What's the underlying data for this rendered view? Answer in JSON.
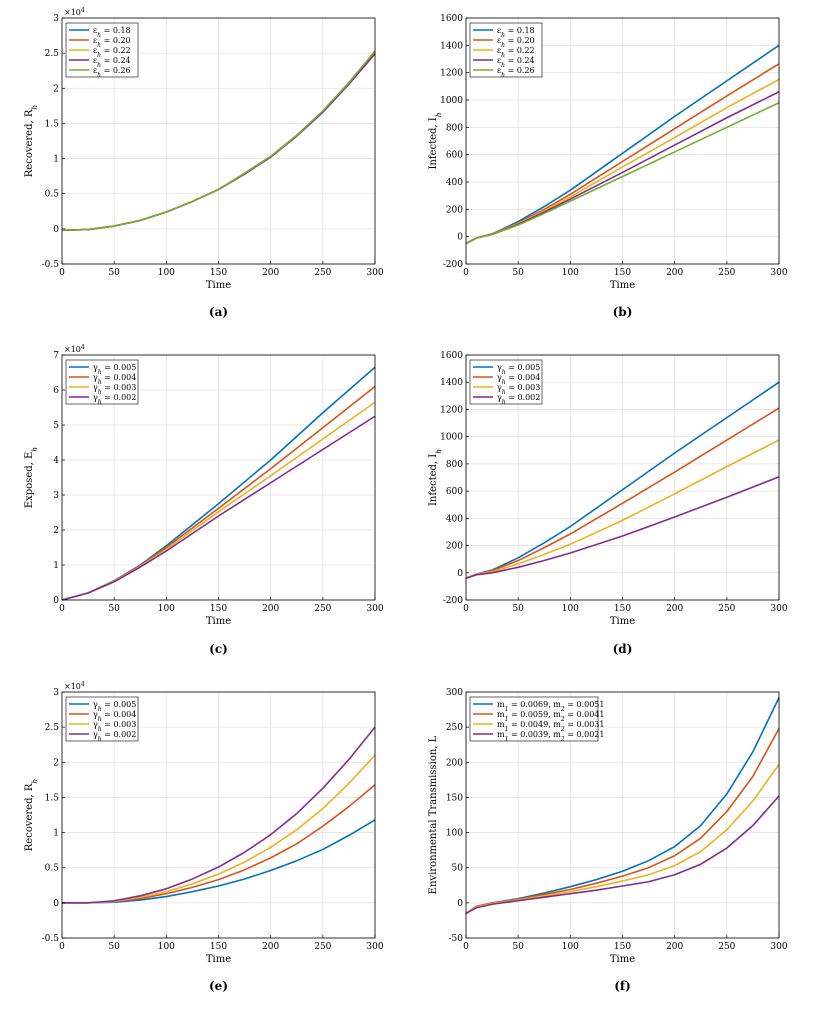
{
  "chart_data": [
    {
      "panel": "(a)",
      "type": "line",
      "xlabel": "Time",
      "ylabel": "Recovered, R_h",
      "xlim": [
        0,
        300
      ],
      "ylim": [
        -0.5,
        3
      ],
      "xticks": [
        "0",
        "50",
        "100",
        "150",
        "200",
        "250",
        "300"
      ],
      "yticks": [
        "-0.5",
        "0",
        "0.5",
        "1",
        "1.5",
        "2",
        "2.5",
        "3"
      ],
      "yexponent": "×10^4",
      "x": [
        0,
        25,
        50,
        75,
        100,
        125,
        150,
        175,
        200,
        225,
        250,
        275,
        300
      ],
      "series": [
        {
          "name": "ε_h = 0.18",
          "color": "#0072BD",
          "values": [
            -0.02,
            -0.01,
            0.04,
            0.12,
            0.24,
            0.39,
            0.56,
            0.79,
            1.03,
            1.33,
            1.67,
            2.08,
            2.52
          ]
        },
        {
          "name": "ε_h = 0.20",
          "color": "#D95319",
          "values": [
            -0.02,
            -0.01,
            0.04,
            0.12,
            0.24,
            0.39,
            0.56,
            0.79,
            1.03,
            1.33,
            1.67,
            2.07,
            2.51
          ]
        },
        {
          "name": "ε_h = 0.22",
          "color": "#EDB120",
          "values": [
            -0.02,
            -0.01,
            0.04,
            0.12,
            0.24,
            0.39,
            0.56,
            0.78,
            1.02,
            1.32,
            1.66,
            2.06,
            2.5
          ]
        },
        {
          "name": "ε_h = 0.24",
          "color": "#7E2F8E",
          "values": [
            -0.02,
            -0.01,
            0.04,
            0.12,
            0.24,
            0.39,
            0.56,
            0.78,
            1.02,
            1.32,
            1.66,
            2.06,
            2.49
          ]
        },
        {
          "name": "ε_h = 0.26",
          "color": "#77AC30",
          "values": [
            -0.02,
            -0.01,
            0.04,
            0.12,
            0.24,
            0.39,
            0.56,
            0.79,
            1.03,
            1.33,
            1.68,
            2.08,
            2.53
          ]
        }
      ],
      "legend_position": "top-left",
      "caption": "(a)"
    },
    {
      "panel": "(b)",
      "type": "line",
      "xlabel": "Time",
      "ylabel": "Infected, I_h",
      "xlim": [
        0,
        300
      ],
      "ylim": [
        -200,
        1600
      ],
      "xticks": [
        "0",
        "50",
        "100",
        "150",
        "200",
        "250",
        "300"
      ],
      "yticks": [
        "-200",
        "0",
        "200",
        "400",
        "600",
        "800",
        "1000",
        "1200",
        "1400",
        "1600"
      ],
      "x": [
        0,
        10,
        25,
        50,
        75,
        100,
        150,
        200,
        250,
        300
      ],
      "series": [
        {
          "name": "ε_h = 0.18",
          "color": "#0072BD",
          "values": [
            -50,
            -10,
            20,
            110,
            220,
            340,
            610,
            880,
            1140,
            1400
          ]
        },
        {
          "name": "ε_h = 0.20",
          "color": "#D95319",
          "values": [
            -50,
            -10,
            20,
            100,
            200,
            310,
            550,
            790,
            1030,
            1265
          ]
        },
        {
          "name": "ε_h = 0.22",
          "color": "#EDB120",
          "values": [
            -50,
            -10,
            18,
            95,
            190,
            290,
            510,
            725,
            945,
            1150
          ]
        },
        {
          "name": "ε_h = 0.24",
          "color": "#7E2F8E",
          "values": [
            -50,
            -10,
            17,
            90,
            180,
            275,
            470,
            670,
            870,
            1060
          ]
        },
        {
          "name": "ε_h = 0.26",
          "color": "#77AC30",
          "values": [
            -50,
            -10,
            16,
            85,
            170,
            260,
            440,
            620,
            800,
            980
          ]
        }
      ],
      "legend_position": "top-left",
      "caption": "(b)"
    },
    {
      "panel": "(c)",
      "type": "line",
      "xlabel": "Time",
      "ylabel": "Exposed, E_h",
      "xlim": [
        0,
        300
      ],
      "ylim": [
        0,
        7
      ],
      "xticks": [
        "0",
        "50",
        "100",
        "150",
        "200",
        "250",
        "300"
      ],
      "yticks": [
        "0",
        "1",
        "2",
        "3",
        "4",
        "5",
        "6",
        "7"
      ],
      "yexponent": "×10^4",
      "x": [
        0,
        25,
        50,
        75,
        100,
        150,
        200,
        250,
        300
      ],
      "series": [
        {
          "name": "γ_h = 0.005",
          "color": "#0072BD",
          "values": [
            0,
            0.2,
            0.55,
            1.0,
            1.55,
            2.75,
            4.0,
            5.35,
            6.65
          ]
        },
        {
          "name": "γ_h = 0.004",
          "color": "#D95319",
          "values": [
            0,
            0.2,
            0.54,
            0.98,
            1.5,
            2.62,
            3.75,
            4.92,
            6.1
          ]
        },
        {
          "name": "γ_h = 0.003",
          "color": "#EDB120",
          "values": [
            0,
            0.2,
            0.53,
            0.96,
            1.45,
            2.52,
            3.55,
            4.6,
            5.65
          ]
        },
        {
          "name": "γ_h = 0.002",
          "color": "#7E2F8E",
          "values": [
            0,
            0.2,
            0.52,
            0.94,
            1.4,
            2.4,
            3.35,
            4.3,
            5.25
          ]
        }
      ],
      "legend_position": "top-left",
      "caption": "(c)"
    },
    {
      "panel": "(d)",
      "type": "line",
      "xlabel": "Time",
      "ylabel": "Infected, I_h",
      "xlim": [
        0,
        300
      ],
      "ylim": [
        -200,
        1600
      ],
      "xticks": [
        "0",
        "50",
        "100",
        "150",
        "200",
        "250",
        "300"
      ],
      "yticks": [
        "-200",
        "0",
        "200",
        "400",
        "600",
        "800",
        "1000",
        "1200",
        "1400",
        "1600"
      ],
      "x": [
        0,
        10,
        25,
        50,
        75,
        100,
        150,
        200,
        250,
        300
      ],
      "series": [
        {
          "name": "γ_h = 0.005",
          "color": "#0072BD",
          "values": [
            -40,
            -10,
            20,
            110,
            220,
            340,
            610,
            880,
            1140,
            1400
          ]
        },
        {
          "name": "γ_h = 0.004",
          "color": "#D95319",
          "values": [
            -40,
            -10,
            15,
            90,
            185,
            285,
            510,
            740,
            975,
            1210
          ]
        },
        {
          "name": "γ_h = 0.003",
          "color": "#EDB120",
          "values": [
            -40,
            -12,
            8,
            65,
            135,
            210,
            385,
            580,
            780,
            975
          ]
        },
        {
          "name": "γ_h = 0.002",
          "color": "#7E2F8E",
          "values": [
            -40,
            -15,
            0,
            40,
            90,
            145,
            270,
            410,
            555,
            705
          ]
        }
      ],
      "legend_position": "top-left",
      "caption": "(d)"
    },
    {
      "panel": "(e)",
      "type": "line",
      "xlabel": "Time",
      "ylabel": "Recovered, R_h",
      "xlim": [
        0,
        300
      ],
      "ylim": [
        -0.5,
        3
      ],
      "xticks": [
        "0",
        "50",
        "100",
        "150",
        "200",
        "250",
        "300"
      ],
      "yticks": [
        "-0.5",
        "0",
        "0.5",
        "1",
        "1.5",
        "2",
        "2.5",
        "3"
      ],
      "yexponent": "×10^4",
      "x": [
        0,
        25,
        50,
        75,
        100,
        125,
        150,
        175,
        200,
        225,
        250,
        275,
        300
      ],
      "series": [
        {
          "name": "γ_h = 0.005",
          "color": "#0072BD",
          "values": [
            0,
            0,
            0.01,
            0.04,
            0.09,
            0.16,
            0.24,
            0.34,
            0.46,
            0.6,
            0.76,
            0.96,
            1.18
          ]
        },
        {
          "name": "γ_h = 0.004",
          "color": "#D95319",
          "values": [
            0,
            0,
            0.02,
            0.06,
            0.13,
            0.22,
            0.33,
            0.47,
            0.64,
            0.84,
            1.09,
            1.37,
            1.68
          ]
        },
        {
          "name": "γ_h = 0.003",
          "color": "#EDB120",
          "values": [
            0,
            0,
            0.02,
            0.08,
            0.16,
            0.27,
            0.41,
            0.58,
            0.79,
            1.04,
            1.34,
            1.7,
            2.1
          ]
        },
        {
          "name": "γ_h = 0.002",
          "color": "#7E2F8E",
          "values": [
            0,
            0,
            0.03,
            0.1,
            0.2,
            0.34,
            0.51,
            0.72,
            0.97,
            1.27,
            1.63,
            2.04,
            2.5
          ]
        }
      ],
      "legend_position": "top-left",
      "caption": "(e)"
    },
    {
      "panel": "(f)",
      "type": "line",
      "xlabel": "Time",
      "ylabel": "Environmental Transmission, L",
      "xlim": [
        0,
        300
      ],
      "ylim": [
        -50,
        300
      ],
      "xticks": [
        "0",
        "50",
        "100",
        "150",
        "200",
        "250",
        "300"
      ],
      "yticks": [
        "-50",
        "0",
        "50",
        "100",
        "150",
        "200",
        "250",
        "300"
      ],
      "x": [
        0,
        10,
        25,
        50,
        75,
        100,
        125,
        150,
        175,
        200,
        225,
        250,
        275,
        300
      ],
      "series": [
        {
          "name": "m_1 = 0.0069, m_2 = 0.0051",
          "color": "#0072BD",
          "values": [
            -15,
            -5,
            0,
            6,
            14,
            23,
            33,
            45,
            60,
            80,
            110,
            155,
            215,
            292
          ]
        },
        {
          "name": "m_1 = 0.0059, m_2 = 0.0041",
          "color": "#D95319",
          "values": [
            -15,
            -5,
            0,
            5,
            12,
            19,
            28,
            38,
            50,
            67,
            92,
            130,
            180,
            248
          ]
        },
        {
          "name": "m_1 = 0.0049, m_2 = 0.0031",
          "color": "#EDB120",
          "values": [
            -15,
            -6,
            -1,
            4,
            10,
            16,
            23,
            31,
            40,
            53,
            73,
            104,
            145,
            197
          ]
        },
        {
          "name": "m_1 = 0.0039, m_2 = 0.0021",
          "color": "#7E2F8E",
          "values": [
            -15,
            -7,
            -2,
            3,
            8,
            13,
            18,
            24,
            30,
            40,
            55,
            78,
            110,
            152
          ]
        }
      ],
      "legend_position": "top-left",
      "caption": "(f)"
    }
  ]
}
